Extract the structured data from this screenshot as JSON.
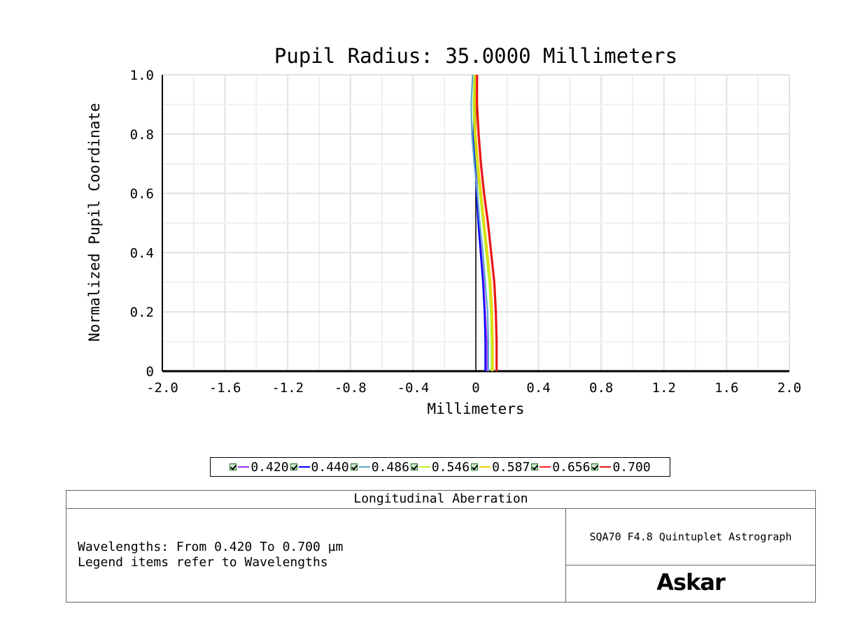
{
  "chart_data": {
    "type": "line",
    "title": "Pupil Radius: 35.0000 Millimeters",
    "xlabel": "Millimeters",
    "ylabel": "Normalized Pupil Coordinate",
    "xlim": [
      -2.0,
      2.0
    ],
    "ylim": [
      0,
      1.0
    ],
    "x_ticks": [
      -2.0,
      -1.6,
      -1.2,
      -0.8,
      -0.4,
      0,
      0.4,
      0.8,
      1.2,
      1.6,
      2.0
    ],
    "x_tick_labels": [
      "-2.0",
      "-1.6",
      "-1.2",
      "-0.8",
      "-0.4",
      "0",
      "0.4",
      "0.8",
      "1.2",
      "1.6",
      "2.0"
    ],
    "y_ticks": [
      0,
      0.2,
      0.4,
      0.6,
      0.8,
      1.0
    ],
    "y_tick_labels": [
      "0",
      "0.2",
      "0.4",
      "0.6",
      "0.8",
      "1.0"
    ],
    "grid": true,
    "legend_position": "bottom",
    "series": [
      {
        "name": "0.420",
        "color": "#9b30ff",
        "points": [
          [
            0.07,
            0
          ],
          [
            0.07,
            0.1
          ],
          [
            0.06,
            0.2
          ],
          [
            0.05,
            0.3
          ],
          [
            0.035,
            0.4
          ],
          [
            0.02,
            0.5
          ],
          [
            0.01,
            0.6
          ],
          [
            0,
            0.7
          ],
          [
            -0.01,
            0.8
          ],
          [
            -0.005,
            0.9
          ],
          [
            0.01,
            1.0
          ]
        ]
      },
      {
        "name": "0.440",
        "color": "#0000ff",
        "points": [
          [
            0.06,
            0
          ],
          [
            0.06,
            0.1
          ],
          [
            0.055,
            0.2
          ],
          [
            0.045,
            0.3
          ],
          [
            0.03,
            0.4
          ],
          [
            0.015,
            0.5
          ],
          [
            0.005,
            0.6
          ],
          [
            -0.005,
            0.7
          ],
          [
            -0.015,
            0.8
          ],
          [
            -0.01,
            0.9
          ],
          [
            0,
            1.0
          ]
        ]
      },
      {
        "name": "0.486",
        "color": "#5fa8c8",
        "points": [
          [
            0.08,
            0
          ],
          [
            0.08,
            0.1
          ],
          [
            0.075,
            0.2
          ],
          [
            0.06,
            0.3
          ],
          [
            0.045,
            0.4
          ],
          [
            0.025,
            0.5
          ],
          [
            0.01,
            0.6
          ],
          [
            -0.01,
            0.7
          ],
          [
            -0.025,
            0.8
          ],
          [
            -0.03,
            0.9
          ],
          [
            -0.02,
            1.0
          ]
        ]
      },
      {
        "name": "0.546",
        "color": "#b8f020",
        "points": [
          [
            0.1,
            0
          ],
          [
            0.1,
            0.1
          ],
          [
            0.095,
            0.2
          ],
          [
            0.085,
            0.3
          ],
          [
            0.065,
            0.4
          ],
          [
            0.045,
            0.5
          ],
          [
            0.025,
            0.6
          ],
          [
            0.005,
            0.7
          ],
          [
            -0.01,
            0.8
          ],
          [
            -0.015,
            0.9
          ],
          [
            -0.01,
            1.0
          ]
        ]
      },
      {
        "name": "0.587",
        "color": "#f0d000",
        "points": [
          [
            0.11,
            0
          ],
          [
            0.11,
            0.1
          ],
          [
            0.105,
            0.2
          ],
          [
            0.095,
            0.3
          ],
          [
            0.075,
            0.4
          ],
          [
            0.055,
            0.5
          ],
          [
            0.035,
            0.6
          ],
          [
            0.015,
            0.7
          ],
          [
            0,
            0.8
          ],
          [
            -0.005,
            0.9
          ],
          [
            0,
            1.0
          ]
        ]
      },
      {
        "name": "0.656",
        "color": "#ff2020",
        "points": [
          [
            0.13,
            0
          ],
          [
            0.13,
            0.1
          ],
          [
            0.125,
            0.2
          ],
          [
            0.115,
            0.3
          ],
          [
            0.095,
            0.4
          ],
          [
            0.075,
            0.5
          ],
          [
            0.05,
            0.6
          ],
          [
            0.03,
            0.7
          ],
          [
            0.015,
            0.8
          ],
          [
            0.005,
            0.9
          ],
          [
            0.005,
            1.0
          ]
        ]
      },
      {
        "name": "0.700",
        "color": "#e01818",
        "points": [
          [
            0.135,
            0
          ],
          [
            0.135,
            0.1
          ],
          [
            0.13,
            0.2
          ],
          [
            0.12,
            0.3
          ],
          [
            0.1,
            0.4
          ],
          [
            0.08,
            0.5
          ],
          [
            0.055,
            0.6
          ],
          [
            0.035,
            0.7
          ],
          [
            0.02,
            0.8
          ],
          [
            0.01,
            0.9
          ],
          [
            0.01,
            1.0
          ]
        ]
      }
    ]
  },
  "info": {
    "header": "Longitudinal Aberration",
    "line1": "Wavelengths: From 0.420 To 0.700 µm",
    "line2": "Legend items refer to Wavelengths",
    "product": "SQA70 F4.8 Quintuplet Astrograph",
    "logo": "Askar"
  }
}
